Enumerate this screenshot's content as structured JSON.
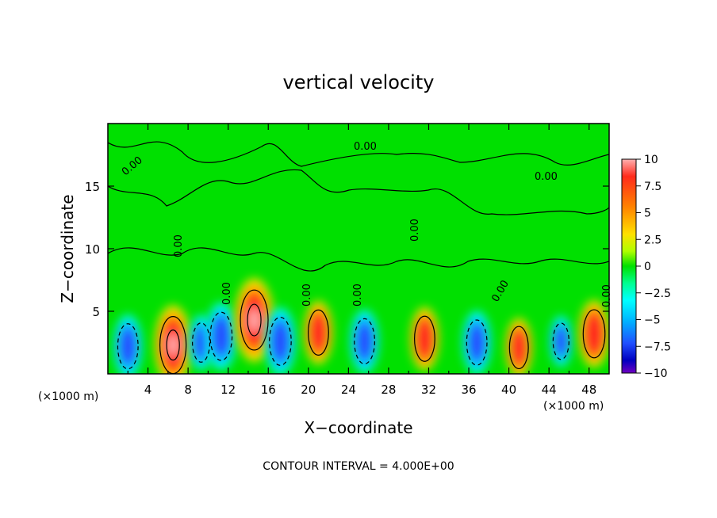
{
  "chart_data": {
    "type": "heatmap",
    "title": "vertical velocity",
    "xlabel": "X−coordinate",
    "ylabel": "Z−coordinate",
    "x_unit_left": "(×1000 m)",
    "x_unit_right": "(×1000 m)",
    "footer": "CONTOUR INTERVAL = 4.000E+00",
    "xlim": [
      0,
      50
    ],
    "ylim": [
      0,
      20
    ],
    "xticks": [
      4,
      8,
      12,
      16,
      20,
      24,
      28,
      32,
      36,
      40,
      44,
      48
    ],
    "yticks": [
      5,
      10,
      15
    ],
    "colorbar": {
      "range": [
        -10,
        10
      ],
      "ticks": [
        "10",
        "7.5",
        "5",
        "2.5",
        "0",
        "−2.5",
        "−5",
        "−7.5",
        "−10"
      ],
      "colors": [
        "#ffb0b0",
        "#ff2b1c",
        "#ff8000",
        "#ffe000",
        "#b0ff00",
        "#00e000",
        "#00ff90",
        "#00ffff",
        "#00b0ff",
        "#2050ff",
        "#0000c0",
        "#7000c0"
      ]
    },
    "contour_labels": [
      "0.00",
      "0.00",
      "0.00",
      "0.00",
      "0.00",
      "0.00",
      "0.00",
      "0.00",
      "0.00",
      "0.00"
    ],
    "cells": [
      {
        "x": 2,
        "z": 2.2,
        "w": -6
      },
      {
        "x": 6.5,
        "z": 2.3,
        "w": 10
      },
      {
        "x": 9.3,
        "z": 2.5,
        "w": -4
      },
      {
        "x": 11.3,
        "z": 3,
        "w": -7
      },
      {
        "x": 14.6,
        "z": 4.3,
        "w": 11
      },
      {
        "x": 17.2,
        "z": 2.6,
        "w": -7
      },
      {
        "x": 21,
        "z": 3.3,
        "w": 6
      },
      {
        "x": 25.6,
        "z": 2.6,
        "w": -6
      },
      {
        "x": 31.6,
        "z": 2.8,
        "w": 6
      },
      {
        "x": 36.8,
        "z": 2.5,
        "w": -6
      },
      {
        "x": 41,
        "z": 2.1,
        "w": 5
      },
      {
        "x": 45.2,
        "z": 2.6,
        "w": -3
      },
      {
        "x": 48.5,
        "z": 3.2,
        "w": 7
      }
    ]
  }
}
